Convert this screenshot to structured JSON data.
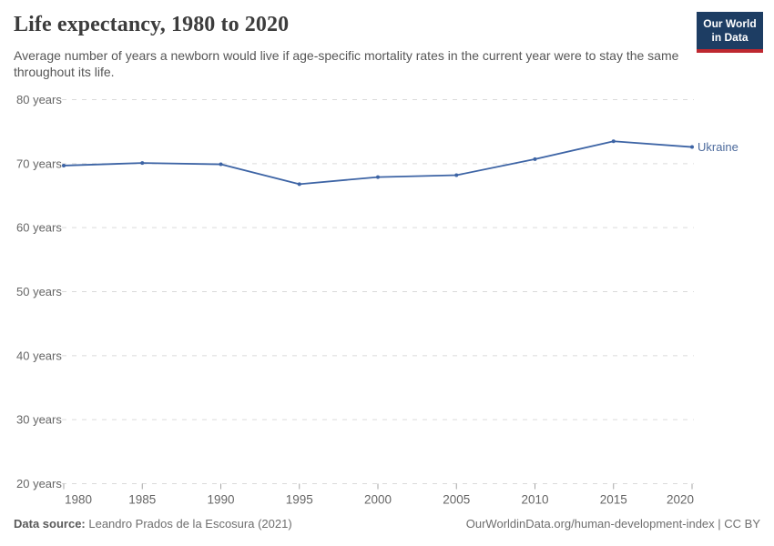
{
  "header": {
    "title": "Life expectancy, 1980 to 2020",
    "subtitle": "Average number of years a newborn would live if age-specific mortality rates in the current year were to stay the same throughout its life."
  },
  "logo": {
    "line1": "Our World",
    "line2": "in Data",
    "bg_color": "#1d3d63",
    "bar_color": "#be2830"
  },
  "chart_data": {
    "type": "line",
    "title": "Life expectancy, 1980 to 2020",
    "x": [
      1980,
      1985,
      1990,
      1995,
      2000,
      2005,
      2010,
      2015,
      2020
    ],
    "series": [
      {
        "name": "Ukraine",
        "values": [
          69.7,
          70.1,
          69.9,
          66.8,
          67.9,
          68.2,
          70.7,
          73.5,
          72.6
        ],
        "color": "#3d64a5",
        "label_color": "#4c6a9c"
      }
    ],
    "xlabel": "",
    "ylabel": "years",
    "ylim": [
      20,
      80
    ],
    "yticks": [
      20,
      30,
      40,
      50,
      60,
      70,
      80
    ],
    "ytick_suffix": " years",
    "xticks": [
      1980,
      1985,
      1990,
      1995,
      2000,
      2005,
      2010,
      2015,
      2020
    ],
    "grid": "horizontal-dashed",
    "legend": "end-of-line-label",
    "grid_color": "#dadada",
    "tick_color": "#a5a5a5",
    "axis_text_color": "#666666"
  },
  "footer": {
    "source_label": "Data source:",
    "source_value": " Leandro Prados de la Escosura (2021)",
    "right": "OurWorldinData.org/human-development-index | CC BY"
  }
}
